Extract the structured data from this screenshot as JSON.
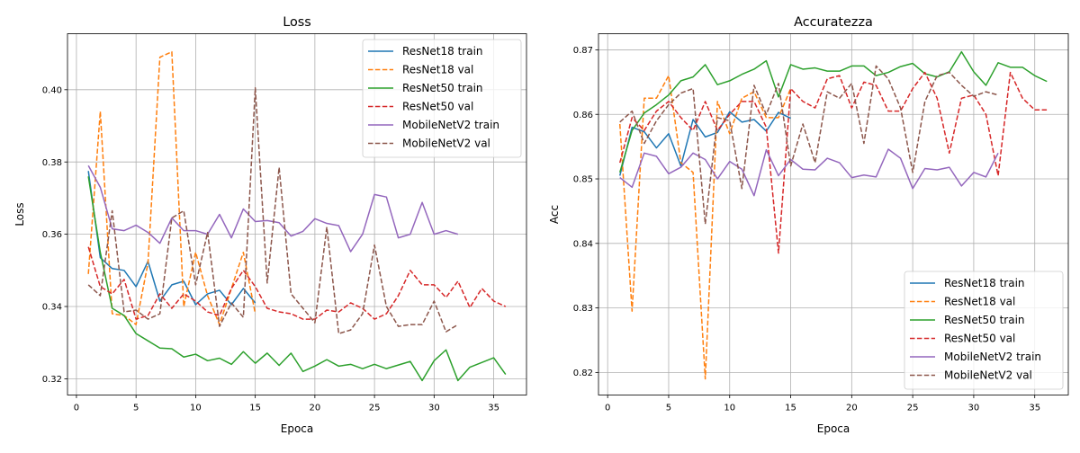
{
  "chart_data": [
    {
      "type": "line",
      "title": "Loss",
      "xlabel": "Epoca",
      "ylabel": "Loss",
      "xlim": [
        -0.75,
        37.75
      ],
      "ylim": [
        0.3155,
        0.4155
      ],
      "xticks": [
        0,
        5,
        10,
        15,
        20,
        25,
        30,
        35
      ],
      "yticks": [
        0.32,
        0.34,
        0.36,
        0.38,
        0.4
      ],
      "ytick_decimals": 2,
      "grid": true,
      "legend_position": "upper right",
      "series": [
        {
          "name": "ResNet18 train",
          "color": "#1f77b4",
          "dash": "solid",
          "x": [
            1,
            2,
            3,
            4,
            5,
            6,
            7,
            8,
            9,
            10,
            11,
            12,
            13,
            14,
            15
          ],
          "y": [
            0.3775,
            0.3535,
            0.3505,
            0.35,
            0.3455,
            0.3525,
            0.3415,
            0.346,
            0.347,
            0.3405,
            0.3435,
            0.3445,
            0.3405,
            0.345,
            0.341
          ]
        },
        {
          "name": "ResNet18 val",
          "color": "#ff7f0e",
          "dash": "dashed",
          "x": [
            1,
            2,
            3,
            4,
            5,
            6,
            7,
            8,
            9,
            10,
            11,
            12,
            13,
            14,
            15
          ],
          "y": [
            0.349,
            0.394,
            0.338,
            0.3375,
            0.335,
            0.352,
            0.409,
            0.4105,
            0.34,
            0.355,
            0.343,
            0.335,
            0.345,
            0.355,
            0.338
          ]
        },
        {
          "name": "ResNet50 train",
          "color": "#2ca02c",
          "dash": "solid",
          "x": [
            1,
            2,
            3,
            4,
            5,
            6,
            7,
            8,
            9,
            10,
            11,
            12,
            13,
            14,
            15,
            16,
            17,
            18,
            19,
            20,
            21,
            22,
            23,
            24,
            25,
            26,
            27,
            28,
            29,
            30,
            31,
            32,
            33,
            34,
            35,
            36
          ],
          "y": [
            0.376,
            0.355,
            0.3395,
            0.3375,
            0.3325,
            0.3305,
            0.3285,
            0.3283,
            0.326,
            0.3268,
            0.325,
            0.3257,
            0.324,
            0.3275,
            0.3243,
            0.3271,
            0.3237,
            0.3271,
            0.322,
            0.3235,
            0.3253,
            0.3235,
            0.324,
            0.3228,
            0.324,
            0.3228,
            0.3238,
            0.3248,
            0.3195,
            0.325,
            0.328,
            0.3195,
            0.3232,
            0.3245,
            0.3258,
            0.3212
          ]
        },
        {
          "name": "ResNet50 val",
          "color": "#d62728",
          "dash": "dashed",
          "x": [
            1,
            2,
            3,
            4,
            5,
            6,
            7,
            8,
            9,
            10,
            11,
            12,
            13,
            14,
            15,
            16,
            17,
            18,
            19,
            20,
            21,
            22,
            23,
            24,
            25,
            26,
            27,
            28,
            29,
            30,
            31,
            32,
            33,
            34,
            35,
            36
          ],
          "y": [
            0.3565,
            0.3455,
            0.3435,
            0.3475,
            0.3365,
            0.3375,
            0.3435,
            0.3395,
            0.3435,
            0.3415,
            0.3385,
            0.3375,
            0.345,
            0.35,
            0.3455,
            0.3395,
            0.3385,
            0.338,
            0.3365,
            0.3365,
            0.339,
            0.3385,
            0.341,
            0.3395,
            0.3365,
            0.338,
            0.343,
            0.35,
            0.346,
            0.346,
            0.3425,
            0.347,
            0.3397,
            0.345,
            0.3415,
            0.34
          ]
        },
        {
          "name": "MobileNetV2 train",
          "color": "#9467bd",
          "dash": "solid",
          "x": [
            1,
            2,
            3,
            4,
            5,
            6,
            7,
            8,
            9,
            10,
            11,
            12,
            13,
            14,
            15,
            16,
            17,
            18,
            19,
            20,
            21,
            22,
            23,
            24,
            25,
            26,
            27,
            28,
            29,
            30,
            31,
            32
          ],
          "y": [
            0.379,
            0.373,
            0.3615,
            0.361,
            0.3625,
            0.3605,
            0.3575,
            0.3645,
            0.361,
            0.361,
            0.36,
            0.3655,
            0.359,
            0.367,
            0.3635,
            0.3638,
            0.3632,
            0.3595,
            0.3608,
            0.3643,
            0.363,
            0.3624,
            0.3552,
            0.36,
            0.371,
            0.3703,
            0.359,
            0.36,
            0.3688,
            0.36,
            0.361,
            0.36
          ]
        },
        {
          "name": "MobileNetV2 val",
          "color": "#8c564b",
          "dash": "dashed",
          "x": [
            1,
            2,
            3,
            4,
            5,
            6,
            7,
            8,
            9,
            10,
            11,
            12,
            13,
            14,
            15,
            16,
            17,
            18,
            19,
            20,
            21,
            22,
            23,
            24,
            25,
            26,
            27,
            28,
            29,
            30,
            31,
            32
          ],
          "y": [
            0.346,
            0.343,
            0.3665,
            0.3385,
            0.339,
            0.3365,
            0.338,
            0.3645,
            0.3665,
            0.346,
            0.3605,
            0.3345,
            0.341,
            0.337,
            0.4005,
            0.3465,
            0.3785,
            0.3435,
            0.3395,
            0.3355,
            0.362,
            0.3325,
            0.3335,
            0.338,
            0.357,
            0.34,
            0.3345,
            0.335,
            0.335,
            0.3415,
            0.333,
            0.335
          ]
        }
      ]
    },
    {
      "type": "line",
      "title": "Accuratezza",
      "xlabel": "Epoca",
      "ylabel": "Acc",
      "xlim": [
        -0.75,
        37.75
      ],
      "ylim": [
        0.8165,
        0.8725
      ],
      "xticks": [
        0,
        5,
        10,
        15,
        20,
        25,
        30,
        35
      ],
      "yticks": [
        0.82,
        0.83,
        0.84,
        0.85,
        0.86,
        0.87
      ],
      "ytick_decimals": 2,
      "grid": true,
      "legend_position": "lower right",
      "series": [
        {
          "name": "ResNet18 train",
          "color": "#1f77b4",
          "dash": "solid",
          "x": [
            1,
            2,
            3,
            4,
            5,
            6,
            7,
            8,
            9,
            10,
            11,
            12,
            13,
            14,
            15
          ],
          "y": [
            0.8505,
            0.858,
            0.8573,
            0.8548,
            0.857,
            0.852,
            0.8592,
            0.8565,
            0.8572,
            0.8604,
            0.8588,
            0.8592,
            0.8574,
            0.8603,
            0.8594
          ]
        },
        {
          "name": "ResNet18 val",
          "color": "#ff7f0e",
          "dash": "dashed",
          "x": [
            1,
            2,
            3,
            4,
            5,
            6,
            7,
            8,
            9,
            10,
            11,
            12,
            13,
            14,
            15
          ],
          "y": [
            0.8585,
            0.8295,
            0.8625,
            0.8625,
            0.866,
            0.8525,
            0.851,
            0.819,
            0.862,
            0.857,
            0.8625,
            0.8635,
            0.8595,
            0.8595,
            0.864
          ]
        },
        {
          "name": "ResNet50 train",
          "color": "#2ca02c",
          "dash": "solid",
          "x": [
            1,
            2,
            3,
            4,
            5,
            6,
            7,
            8,
            9,
            10,
            11,
            12,
            13,
            14,
            15,
            16,
            17,
            18,
            19,
            20,
            21,
            22,
            23,
            24,
            25,
            26,
            27,
            28,
            29,
            30,
            31,
            32,
            33,
            34,
            35,
            36
          ],
          "y": [
            0.851,
            0.8575,
            0.8602,
            0.8615,
            0.863,
            0.8652,
            0.8658,
            0.8677,
            0.8646,
            0.8652,
            0.8662,
            0.867,
            0.8683,
            0.8627,
            0.8677,
            0.867,
            0.8672,
            0.8667,
            0.8667,
            0.8675,
            0.8675,
            0.866,
            0.8665,
            0.8674,
            0.8679,
            0.8663,
            0.8658,
            0.8666,
            0.8697,
            0.8666,
            0.8645,
            0.868,
            0.8673,
            0.8673,
            0.866,
            0.8651
          ]
        },
        {
          "name": "ResNet50 val",
          "color": "#d62728",
          "dash": "dashed",
          "x": [
            1,
            2,
            3,
            4,
            5,
            6,
            7,
            8,
            9,
            10,
            11,
            12,
            13,
            14,
            15,
            16,
            17,
            18,
            19,
            20,
            21,
            22,
            23,
            24,
            25,
            26,
            27,
            28,
            29,
            30,
            31,
            32,
            33,
            34,
            35,
            36
          ],
          "y": [
            0.8525,
            0.8595,
            0.8575,
            0.8605,
            0.862,
            0.8595,
            0.8575,
            0.862,
            0.8575,
            0.86,
            0.862,
            0.862,
            0.858,
            0.8385,
            0.864,
            0.862,
            0.861,
            0.8655,
            0.866,
            0.861,
            0.865,
            0.8645,
            0.8605,
            0.8605,
            0.864,
            0.8665,
            0.8625,
            0.854,
            0.8625,
            0.863,
            0.86,
            0.8505,
            0.8665,
            0.8625,
            0.8607,
            0.8607
          ]
        },
        {
          "name": "MobileNetV2 train",
          "color": "#9467bd",
          "dash": "solid",
          "x": [
            1,
            2,
            3,
            4,
            5,
            6,
            7,
            8,
            9,
            10,
            11,
            12,
            13,
            14,
            15,
            16,
            17,
            18,
            19,
            20,
            21,
            22,
            23,
            24,
            25,
            26,
            27,
            28,
            29,
            30,
            31,
            32
          ],
          "y": [
            0.8502,
            0.8487,
            0.854,
            0.8535,
            0.8508,
            0.8518,
            0.854,
            0.853,
            0.85,
            0.8527,
            0.8515,
            0.8474,
            0.8545,
            0.8505,
            0.853,
            0.8515,
            0.8514,
            0.8532,
            0.8525,
            0.8502,
            0.8506,
            0.8503,
            0.8546,
            0.8532,
            0.8485,
            0.8516,
            0.8514,
            0.8518,
            0.8489,
            0.851,
            0.8503,
            0.854
          ]
        },
        {
          "name": "MobileNetV2 val",
          "color": "#8c564b",
          "dash": "dashed",
          "x": [
            1,
            2,
            3,
            4,
            5,
            6,
            7,
            8,
            9,
            10,
            11,
            12,
            13,
            14,
            15,
            16,
            17,
            18,
            19,
            20,
            21,
            22,
            23,
            24,
            25,
            26,
            27,
            28,
            29,
            30,
            31,
            32
          ],
          "y": [
            0.8588,
            0.8605,
            0.8555,
            0.859,
            0.8615,
            0.8633,
            0.864,
            0.843,
            0.8595,
            0.859,
            0.8485,
            0.8645,
            0.86,
            0.8648,
            0.852,
            0.8585,
            0.8525,
            0.8635,
            0.8625,
            0.8648,
            0.8555,
            0.8675,
            0.8655,
            0.861,
            0.851,
            0.862,
            0.866,
            0.8665,
            0.8645,
            0.8628,
            0.8635,
            0.863
          ]
        }
      ]
    }
  ]
}
